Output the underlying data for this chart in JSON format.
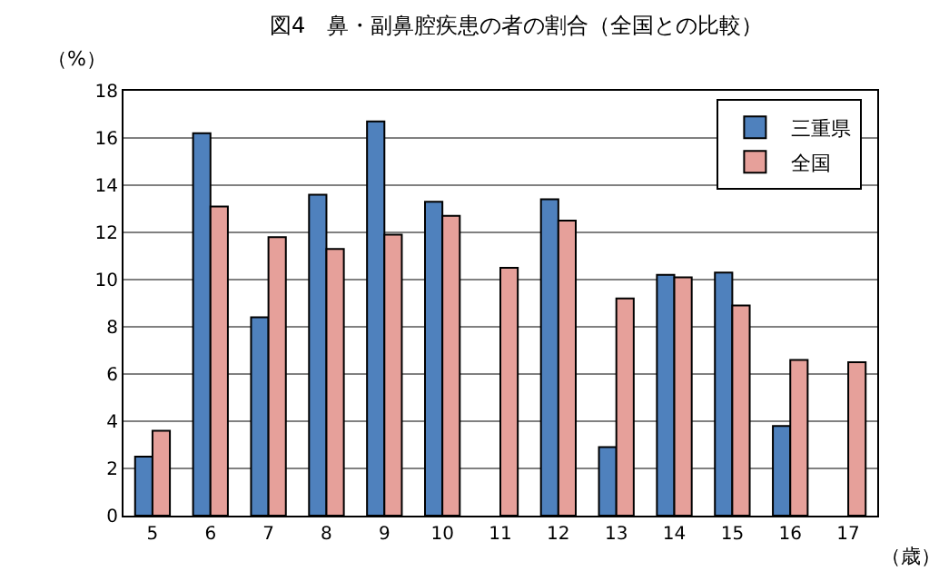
{
  "chart_data": {
    "type": "bar",
    "title": "図4　鼻・副鼻腔疾患の者の割合（全国との比較）",
    "ylabel": "（%）",
    "xlabel": "（歳）",
    "categories": [
      "5",
      "6",
      "7",
      "8",
      "9",
      "10",
      "11",
      "12",
      "13",
      "14",
      "15",
      "16",
      "17"
    ],
    "series": [
      {
        "name": "三重県",
        "color": "#4f81bd",
        "values": [
          2.5,
          16.2,
          8.4,
          13.6,
          16.7,
          13.3,
          null,
          13.4,
          2.9,
          10.2,
          10.3,
          3.8,
          null
        ]
      },
      {
        "name": "全国",
        "color": "#e6a09a",
        "values": [
          3.6,
          13.1,
          11.8,
          11.3,
          11.9,
          12.7,
          10.5,
          12.5,
          9.2,
          10.1,
          8.9,
          6.6,
          6.5
        ]
      }
    ],
    "ylim": [
      0,
      18
    ],
    "yticks": [
      0,
      2,
      4,
      6,
      8,
      10,
      12,
      14,
      16,
      18
    ],
    "grid": "y",
    "legend": "top right"
  }
}
